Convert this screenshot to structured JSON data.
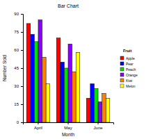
{
  "chart_data": {
    "type": "bar",
    "title": "Bar Chart",
    "x_label": "Month",
    "y_label": "Number Sold",
    "legend_title": "Fruit",
    "categories": [
      "April",
      "May",
      "June"
    ],
    "series": [
      {
        "name": "Apple",
        "color": "#ff0000",
        "values": [
          82,
          70,
          20
        ]
      },
      {
        "name": "Pear",
        "color": "#0000ff",
        "values": [
          73,
          50,
          32
        ]
      },
      {
        "name": "Peach",
        "color": "#00e000",
        "values": [
          67,
          45,
          28
        ]
      },
      {
        "name": "Orange",
        "color": "#8a00ff",
        "values": [
          85,
          65,
          17
        ]
      },
      {
        "name": "Kiwi",
        "color": "#ff8000",
        "values": [
          54,
          42,
          24
        ]
      },
      {
        "name": "Melon",
        "color": "#ffff00",
        "values": [
          32,
          58,
          20
        ]
      }
    ],
    "ylim": [
      0,
      90
    ],
    "yticks": [
      0,
      15,
      30,
      45,
      60,
      75,
      90
    ],
    "legend": "right"
  }
}
